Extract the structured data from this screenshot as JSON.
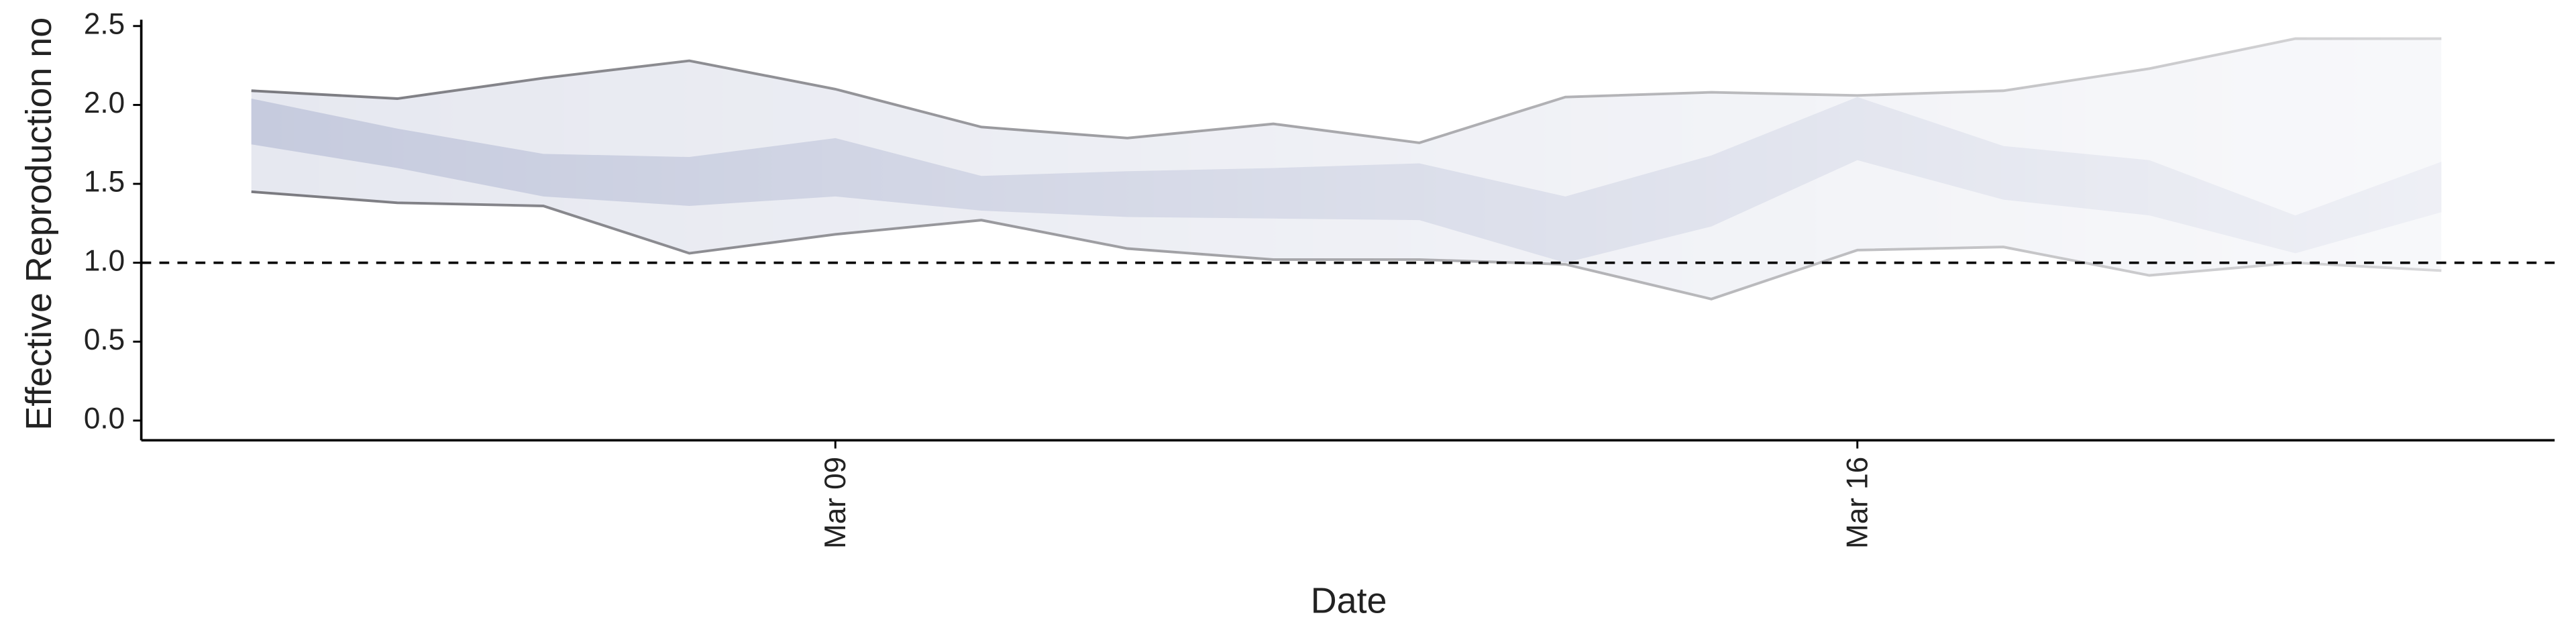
{
  "chart_data": {
    "type": "band",
    "y_label": "Effective Reproduction no",
    "x_label": "Date",
    "x": [
      "Mar 05",
      "Mar 06",
      "Mar 07",
      "Mar 08",
      "Mar 09",
      "Mar 10",
      "Mar 11",
      "Mar 12",
      "Mar 13",
      "Mar 14",
      "Mar 15",
      "Mar 16",
      "Mar 17",
      "Mar 18",
      "Mar 19",
      "Mar 20"
    ],
    "xticks": [
      "Mar 09",
      "Mar 16"
    ],
    "ylim": [
      -0.125,
      2.54
    ],
    "yticks": [
      {
        "value": 0,
        "label": "0.0"
      },
      0.5,
      {
        "value": 1,
        "label": "1.0"
      },
      1.5,
      {
        "value": 2,
        "label": "2.0"
      },
      2.5
    ],
    "hline": 1,
    "series": [
      {
        "color": "#e6e8f0",
        "values": [
          2.09,
          2.04,
          2.17,
          2.28,
          2.1,
          1.86,
          1.79,
          1.88,
          1.76,
          2.05,
          2.08,
          2.06,
          2.09,
          2.23,
          2.42,
          2.42
        ]
      },
      {
        "color": "#e6e8f0",
        "values": [
          1.45,
          1.38,
          1.36,
          1.06,
          1.18,
          1.27,
          1.09,
          1.02,
          1.02,
          0.99,
          0.77,
          1.08,
          1.1,
          0.92,
          1.0,
          0.95
        ]
      },
      {
        "color": "#c6cbde",
        "values": [
          2.04,
          1.85,
          1.69,
          1.67,
          1.79,
          1.55,
          1.58,
          1.6,
          1.63,
          1.42,
          1.68,
          2.05,
          1.74,
          1.65,
          1.3,
          1.64
        ]
      },
      {
        "color": "#c6cbde",
        "values": [
          1.75,
          1.6,
          1.42,
          1.36,
          1.42,
          1.33,
          1.29,
          1.28,
          1.27,
          1.0,
          1.23,
          1.65,
          1.4,
          1.3,
          1.06,
          1.32
        ]
      }
    ]
  }
}
